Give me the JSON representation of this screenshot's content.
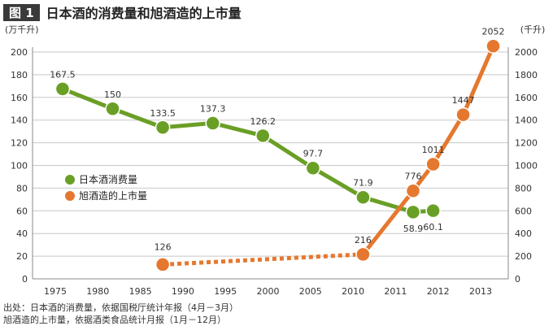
{
  "header": {
    "badge": "图 1",
    "title": "日本酒的消费量和旭酒造的上市量"
  },
  "source": {
    "line1": "出处：日本酒的消费量，依据国税厅统计年报（4月－3月）",
    "line2": "旭酒造的上市量，依据酒类食品统计月报（1月－12月）"
  },
  "colors": {
    "sake": "#6a9f26",
    "asahi": "#e5782e",
    "grid": "#c8c8c8",
    "text": "#333333"
  },
  "chart_data": {
    "type": "line",
    "title": "日本酒的消费量和旭酒造的上市量",
    "x_ticks": [
      "1975",
      "1980",
      "1985",
      "1990",
      "1995",
      "2000",
      "2005",
      "2010",
      "2011",
      "2012",
      "2013"
    ],
    "y_left": {
      "unit": "(万千升)",
      "ticks": [
        "0",
        "20",
        "40",
        "60",
        "80",
        "100",
        "120",
        "140",
        "160",
        "180",
        "200"
      ],
      "range": [
        0,
        200
      ]
    },
    "y_right": {
      "unit": "(千升)",
      "ticks": [
        "0",
        "200",
        "400",
        "600",
        "800",
        "1000",
        "1200",
        "1400",
        "1600",
        "1800",
        "2000"
      ],
      "range": [
        0,
        2000
      ]
    },
    "grid": true,
    "legend_position": "left-middle",
    "series": [
      {
        "name": "日本酒消费量",
        "axis": "left",
        "color": "#6a9f26",
        "points": [
          {
            "x": 1975.0,
            "y": 167.5,
            "label": "167.5"
          },
          {
            "x": 1980.0,
            "y": 150,
            "label": "150"
          },
          {
            "x": 1985.0,
            "y": 133.5,
            "label": "133.5"
          },
          {
            "x": 1990.0,
            "y": 137.3,
            "label": "137.3"
          },
          {
            "x": 1995.0,
            "y": 126.2,
            "label": "126.2"
          },
          {
            "x": 2000.0,
            "y": 97.7,
            "label": "97.7"
          },
          {
            "x": 2005.0,
            "y": 71.9,
            "label": "71.9"
          },
          {
            "x": 2010.0,
            "y": 58.9,
            "label": "58.9"
          },
          {
            "x": 2012.0,
            "y": 60.1,
            "label": "60.1"
          }
        ]
      },
      {
        "name": "旭酒造的上市量",
        "axis": "right",
        "color": "#e5782e",
        "dotted_segment_until_index": 1,
        "points": [
          {
            "x": 1985.0,
            "y": 126,
            "label": "126"
          },
          {
            "x": 2005.0,
            "y": 216,
            "label": "216"
          },
          {
            "x": 2010.0,
            "y": 776,
            "label": "776"
          },
          {
            "x": 2012.0,
            "y": 1011,
            "label": "1011"
          },
          {
            "x": 2015.0,
            "y": 1447,
            "label": "1447"
          },
          {
            "x": 2018.0,
            "y": 2052,
            "label": "2052"
          }
        ]
      }
    ]
  }
}
